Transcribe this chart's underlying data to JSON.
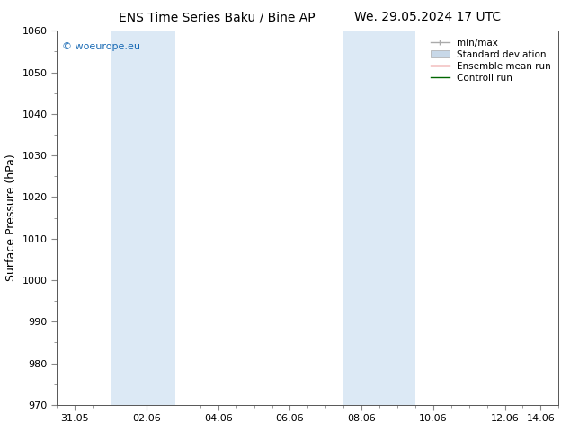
{
  "title_left": "ENS Time Series Baku / Bine AP",
  "title_right": "We. 29.05.2024 17 UTC",
  "ylabel": "Surface Pressure (hPa)",
  "ylim": [
    970,
    1060
  ],
  "yticks": [
    970,
    980,
    990,
    1000,
    1010,
    1020,
    1030,
    1040,
    1050,
    1060
  ],
  "xlim": [
    0,
    14
  ],
  "xlabel_ticks": [
    "31.05",
    "02.06",
    "04.06",
    "06.06",
    "08.06",
    "10.06",
    "12.06",
    "14.06"
  ],
  "xlabel_tick_positions": [
    0.5,
    2.5,
    4.5,
    6.5,
    8.5,
    10.5,
    12.5,
    13.5
  ],
  "shaded_bands": [
    {
      "x_start": 1.5,
      "x_end": 3.3
    },
    {
      "x_start": 8.0,
      "x_end": 10.0
    }
  ],
  "shaded_color": "#dce9f5",
  "background_color": "#ffffff",
  "watermark_text": "© woeurope.eu",
  "watermark_color": "#1a6bb5",
  "legend_items": [
    {
      "label": "min/max",
      "color": "#aaaaaa",
      "lw": 1.0
    },
    {
      "label": "Standard deviation",
      "color": "#c8d8e8",
      "lw": 6
    },
    {
      "label": "Ensemble mean run",
      "color": "#cc0000",
      "lw": 1.0
    },
    {
      "label": "Controll run",
      "color": "#006600",
      "lw": 1.0
    }
  ],
  "title_fontsize": 10,
  "axis_fontsize": 9,
  "tick_fontsize": 8,
  "legend_fontsize": 7.5,
  "watermark_fontsize": 8
}
